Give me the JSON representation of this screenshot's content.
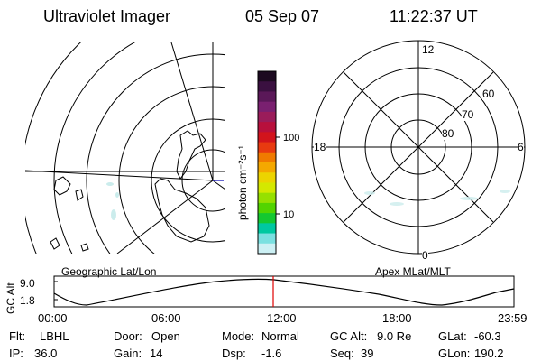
{
  "header": {
    "instrument": "Ultraviolet Imager",
    "date": "05 Sep 07",
    "time": "11:22:37 UT"
  },
  "colorbar": {
    "unit": "photon cm⁻²s⁻¹",
    "ticks": [
      "100",
      "10"
    ],
    "colors": [
      "#1c0a20",
      "#3a1040",
      "#5a1858",
      "#7a2070",
      "#9a1c5a",
      "#b8103c",
      "#d2141c",
      "#e83a10",
      "#f07a00",
      "#f4a800",
      "#ecd400",
      "#d4e800",
      "#96e000",
      "#52d400",
      "#14c830",
      "#00c8a0",
      "#7ae0e0",
      "#ccf0f4"
    ]
  },
  "left_map": {
    "label": "Geographic Lat/Lon"
  },
  "right_map": {
    "label": "Apex MLat/MLT",
    "mlt_labels": [
      "12",
      "18",
      "6",
      "0"
    ],
    "lat_labels": [
      "60",
      "70",
      "80"
    ]
  },
  "altitude_plot": {
    "ylabel": "GC Alt",
    "yticks": [
      "9.0",
      "1.8"
    ],
    "xticks": [
      "00:00",
      "06:00",
      "12:00",
      "18:00",
      "23:59"
    ],
    "current_time_color": "#e00000"
  },
  "info": {
    "filter": {
      "key": "Flt:",
      "value": "LBHL"
    },
    "ip": {
      "key": "IP:",
      "value": "36.0"
    },
    "door": {
      "key": "Door:",
      "value": "Open"
    },
    "gain": {
      "key": "Gain:",
      "value": "14"
    },
    "mode": {
      "key": "Mode:",
      "value": "Normal"
    },
    "dsp": {
      "key": "Dsp:",
      "value": "-1.6"
    },
    "gc_alt": {
      "key": "GC Alt:",
      "value": "9.0 Re"
    },
    "seq": {
      "key": "Seq:",
      "value": "39"
    },
    "glat": {
      "key": "GLat:",
      "value": "-60.3"
    },
    "glon": {
      "key": "GLon:",
      "value": "190.2"
    }
  }
}
